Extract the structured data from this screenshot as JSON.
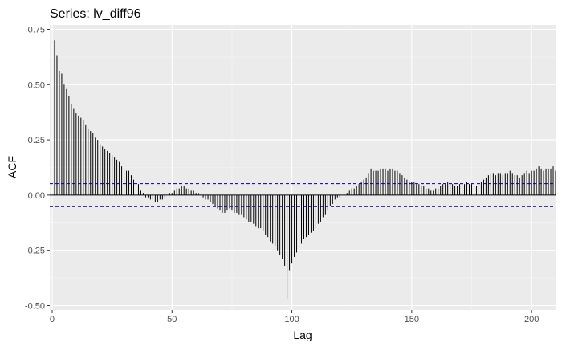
{
  "chart_data": {
    "type": "bar",
    "title": "Series: lv_diff96",
    "xlabel": "Lag",
    "ylabel": "ACF",
    "xlim": [
      -1,
      210
    ],
    "ylim": [
      -0.52,
      0.77
    ],
    "x_ticks": [
      0,
      50,
      100,
      150,
      200
    ],
    "x_tick_labels": [
      "0",
      "50",
      "100",
      "150",
      "200"
    ],
    "y_ticks": [
      -0.5,
      -0.25,
      0.0,
      0.25,
      0.5,
      0.75
    ],
    "y_tick_labels": [
      "-0.50",
      "-0.25",
      "0.00",
      "0.25",
      "0.50",
      "0.75"
    ],
    "confidence_bounds": [
      0.052,
      -0.052
    ],
    "grid": true,
    "lags_start": 1,
    "acf": [
      0.7,
      0.63,
      0.56,
      0.55,
      0.5,
      0.48,
      0.45,
      0.41,
      0.39,
      0.37,
      0.36,
      0.35,
      0.34,
      0.32,
      0.3,
      0.29,
      0.28,
      0.26,
      0.25,
      0.23,
      0.22,
      0.21,
      0.2,
      0.19,
      0.18,
      0.17,
      0.16,
      0.15,
      0.13,
      0.12,
      0.11,
      0.11,
      0.09,
      0.07,
      0.06,
      0.05,
      0.02,
      0.01,
      -0.01,
      -0.01,
      -0.02,
      -0.02,
      -0.03,
      -0.03,
      -0.02,
      -0.02,
      -0.01,
      0.0,
      0.01,
      0.01,
      0.02,
      0.03,
      0.03,
      0.04,
      0.04,
      0.03,
      0.03,
      0.02,
      0.02,
      0.01,
      0.01,
      0.0,
      -0.01,
      -0.02,
      -0.02,
      -0.03,
      -0.04,
      -0.05,
      -0.06,
      -0.07,
      -0.08,
      -0.08,
      -0.07,
      -0.06,
      -0.07,
      -0.08,
      -0.08,
      -0.09,
      -0.09,
      -0.1,
      -0.11,
      -0.12,
      -0.12,
      -0.13,
      -0.14,
      -0.15,
      -0.15,
      -0.16,
      -0.18,
      -0.19,
      -0.21,
      -0.22,
      -0.23,
      -0.25,
      -0.27,
      -0.29,
      -0.32,
      -0.47,
      -0.34,
      -0.31,
      -0.28,
      -0.26,
      -0.24,
      -0.22,
      -0.2,
      -0.19,
      -0.18,
      -0.17,
      -0.16,
      -0.15,
      -0.13,
      -0.12,
      -0.1,
      -0.09,
      -0.07,
      -0.05,
      -0.04,
      -0.02,
      -0.01,
      -0.01,
      0.0,
      0.0,
      0.01,
      0.02,
      0.03,
      0.03,
      0.04,
      0.05,
      0.06,
      0.07,
      0.08,
      0.1,
      0.12,
      0.11,
      0.11,
      0.11,
      0.12,
      0.12,
      0.12,
      0.11,
      0.12,
      0.12,
      0.11,
      0.11,
      0.1,
      0.09,
      0.08,
      0.07,
      0.06,
      0.06,
      0.06,
      0.05,
      0.05,
      0.04,
      0.04,
      0.03,
      0.03,
      0.02,
      0.02,
      0.03,
      0.03,
      0.04,
      0.05,
      0.05,
      0.06,
      0.05,
      0.05,
      0.04,
      0.04,
      0.05,
      0.05,
      0.05,
      0.06,
      0.05,
      0.05,
      0.04,
      0.04,
      0.05,
      0.06,
      0.07,
      0.08,
      0.09,
      0.1,
      0.1,
      0.09,
      0.1,
      0.1,
      0.09,
      0.1,
      0.1,
      0.11,
      0.1,
      0.09,
      0.09,
      0.08,
      0.09,
      0.1,
      0.11,
      0.1,
      0.11,
      0.11,
      0.12,
      0.13,
      0.12,
      0.11,
      0.12,
      0.12,
      0.12,
      0.13,
      0.11
    ],
    "colors": {
      "panel": "#ebebeb",
      "grid_major": "#ffffff",
      "grid_minor": "#f5f5f5",
      "bar": "#000000",
      "zero_line": "#000000",
      "bounds": "#00008b",
      "text": "#000000",
      "tick_text": "#4d4d4d",
      "tick": "#333333"
    }
  }
}
